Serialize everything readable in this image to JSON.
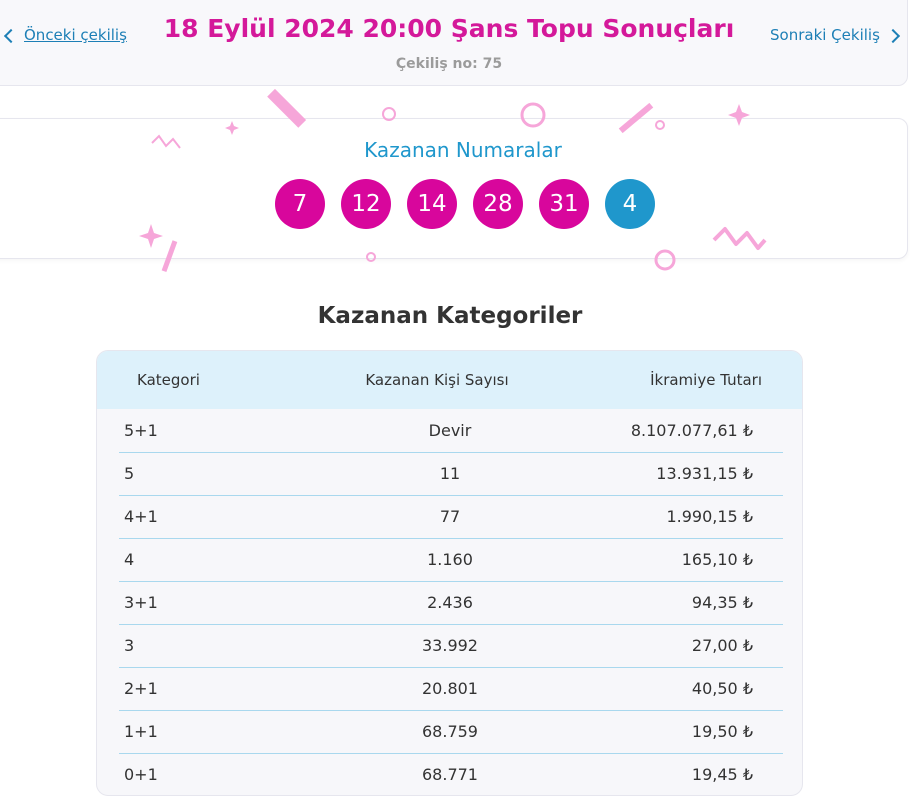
{
  "header": {
    "prev_label": "Önceki çekiliş",
    "title": "18 Eylül 2024 20:00 Şans Topu Sonuçları",
    "subtitle": "Çekiliş no: 75",
    "next_label": "Sonraki Çekiliş"
  },
  "numbers": {
    "heading": "Kazanan Numaralar",
    "main": [
      "7",
      "12",
      "14",
      "28",
      "31"
    ],
    "bonus": "4",
    "main_color": "#d8069c",
    "bonus_color": "#1f97cc"
  },
  "categories": {
    "title": "Kazanan Kategoriler",
    "columns": [
      "Kategori",
      "Kazanan Kişi Sayısı",
      "İkramiye Tutarı"
    ],
    "rows": [
      {
        "cat": "5+1",
        "winners": "Devir",
        "prize": "8.107.077,61 ₺"
      },
      {
        "cat": "5",
        "winners": "11",
        "prize": "13.931,15 ₺"
      },
      {
        "cat": "4+1",
        "winners": "77",
        "prize": "1.990,15 ₺"
      },
      {
        "cat": "4",
        "winners": "1.160",
        "prize": "165,10 ₺"
      },
      {
        "cat": "3+1",
        "winners": "2.436",
        "prize": "94,35 ₺"
      },
      {
        "cat": "3",
        "winners": "33.992",
        "prize": "27,00 ₺"
      },
      {
        "cat": "2+1",
        "winners": "20.801",
        "prize": "40,50 ₺"
      },
      {
        "cat": "1+1",
        "winners": "68.759",
        "prize": "19,50 ₺"
      },
      {
        "cat": "0+1",
        "winners": "68.771",
        "prize": "19,45 ₺"
      }
    ]
  }
}
